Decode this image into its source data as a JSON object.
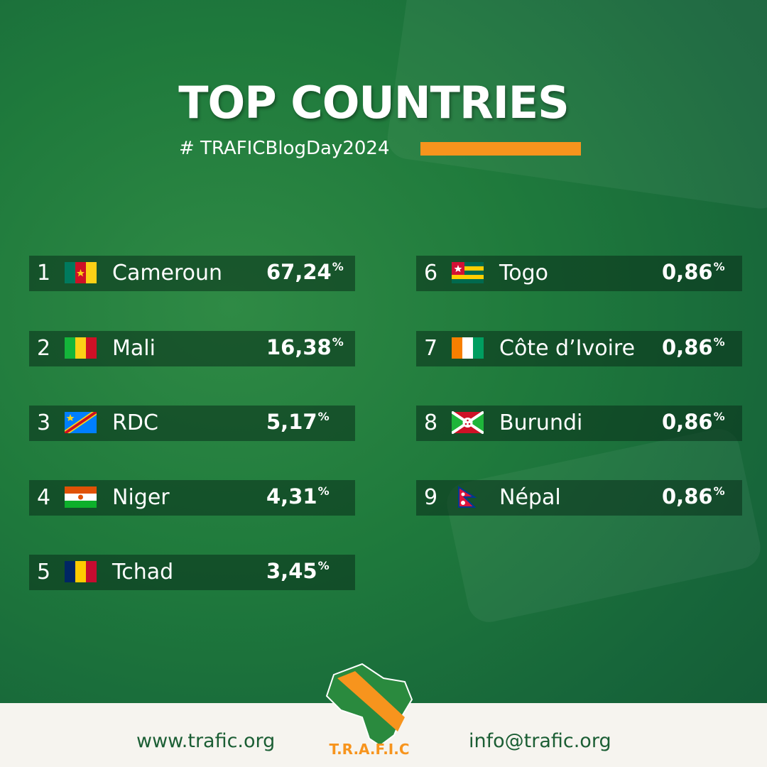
{
  "header": {
    "title": "TOP COUNTRIES",
    "hashtag": "# TRAFICBlogDay2024"
  },
  "percent_sign": "%",
  "rows": [
    {
      "rank": "1",
      "country": "Cameroun",
      "share": "67,24"
    },
    {
      "rank": "2",
      "country": "Mali",
      "share": "16,38"
    },
    {
      "rank": "3",
      "country": "RDC",
      "share": "5,17"
    },
    {
      "rank": "4",
      "country": "Niger",
      "share": "4,31"
    },
    {
      "rank": "5",
      "country": "Tchad",
      "share": "3,45"
    },
    {
      "rank": "6",
      "country": "Togo",
      "share": "0,86"
    },
    {
      "rank": "7",
      "country": "Côte d’Ivoire",
      "share": "0,86"
    },
    {
      "rank": "8",
      "country": "Burundi",
      "share": "0,86"
    },
    {
      "rank": "9",
      "country": "Népal",
      "share": "0,86"
    }
  ],
  "footer": {
    "website": "www.trafic.org",
    "email": "info@trafic.org",
    "logo_text": "T.R.A.F.I.C"
  }
}
